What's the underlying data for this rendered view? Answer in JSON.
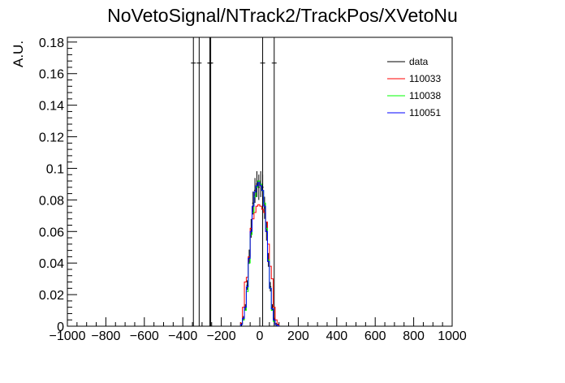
{
  "chart_data": {
    "type": "line",
    "title": "NoVetoSignal/NTrack2/TrackPos/XVetoNu",
    "xlabel": "",
    "ylabel": "A.U.",
    "xlim": [
      -1000,
      1000
    ],
    "ylim": [
      0,
      0.183
    ],
    "x_ticks": [
      -1000,
      -800,
      -600,
      -400,
      -200,
      0,
      200,
      400,
      600,
      800,
      1000
    ],
    "x_tick_labels": [
      "−1000",
      "−800",
      "−600",
      "−400",
      "−200",
      "0",
      "200",
      "400",
      "600",
      "800",
      "1000"
    ],
    "y_ticks": [
      0,
      0.02,
      0.04,
      0.06,
      0.08,
      0.1,
      0.12,
      0.14,
      0.16,
      0.18
    ],
    "y_tick_labels": [
      "0",
      "0.02",
      "0.04",
      "0.06",
      "0.08",
      "0.1",
      "0.12",
      "0.14",
      "0.16",
      "0.18"
    ],
    "bin_edges": [
      -100,
      -90,
      -80,
      -70,
      -60,
      -50,
      -40,
      -30,
      -20,
      -10,
      0,
      10,
      20,
      30,
      40,
      50,
      60,
      70,
      80,
      90,
      100
    ],
    "series": [
      {
        "name": "data",
        "color": "#000000",
        "style": "markers+errors",
        "values": [
          0.001,
          0.005,
          0.012,
          0.026,
          0.044,
          0.062,
          0.078,
          0.086,
          0.09,
          0.088,
          0.09,
          0.088,
          0.075,
          0.06,
          0.042,
          0.025,
          0.012,
          0.004,
          0.001,
          0.0005
        ],
        "isolated_points": [
          {
            "x": -345,
            "y": 0.1667
          },
          {
            "x": -315,
            "y": 0.1667
          },
          {
            "x": -260,
            "y": 0.1667
          },
          {
            "x": -255,
            "y": 0.1667
          },
          {
            "x": 15,
            "y": 0.1667
          },
          {
            "x": 75,
            "y": 0.1667
          }
        ]
      },
      {
        "name": "110033",
        "color": "#ff0000",
        "style": "step",
        "values": [
          0.002,
          0.012,
          0.028,
          0.031,
          0.044,
          0.062,
          0.068,
          0.072,
          0.076,
          0.077,
          0.076,
          0.074,
          0.072,
          0.066,
          0.052,
          0.038,
          0.03,
          0.012,
          0.004,
          0.001
        ]
      },
      {
        "name": "110038",
        "color": "#00ff00",
        "style": "step",
        "values": [
          0.001,
          0.004,
          0.01,
          0.022,
          0.04,
          0.058,
          0.072,
          0.082,
          0.088,
          0.092,
          0.09,
          0.086,
          0.078,
          0.062,
          0.042,
          0.024,
          0.01,
          0.003,
          0.001,
          0.0003
        ]
      },
      {
        "name": "110051",
        "color": "#0000ff",
        "style": "step",
        "values": [
          0.001,
          0.005,
          0.012,
          0.025,
          0.043,
          0.06,
          0.076,
          0.085,
          0.089,
          0.091,
          0.089,
          0.086,
          0.076,
          0.06,
          0.041,
          0.024,
          0.011,
          0.004,
          0.001,
          0.0003
        ]
      }
    ],
    "legend_position": "top-right",
    "grid": false
  }
}
